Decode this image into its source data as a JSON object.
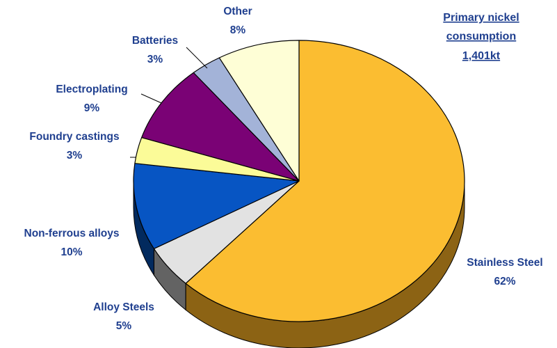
{
  "chart_data": {
    "type": "pie",
    "title_lines": [
      "Primary nickel",
      "consumption",
      "1,401kt"
    ],
    "categories": [
      "Stainless Steel",
      "Alloy Steels",
      "Non-ferrous alloys",
      "Foundry castings",
      "Electroplating",
      "Batteries",
      "Other"
    ],
    "values": [
      62,
      5,
      10,
      3,
      9,
      3,
      8
    ],
    "value_labels": [
      "62%",
      "5%",
      "10%",
      "3%",
      "9%",
      "3%",
      "8%"
    ],
    "colors": [
      "#fbbd31",
      "#e2e2e2",
      "#0755c3",
      "#fbfb98",
      "#7a0275",
      "#a3b3d8",
      "#fefed6"
    ],
    "side_colors": [
      "#8c6314",
      "#636363",
      "#022a5e",
      "#8a8a3f",
      "#3a0037",
      "#555d78",
      "#8c8c6c"
    ],
    "label_color": "#1f3f8f",
    "style": "3d",
    "legend": "none"
  }
}
